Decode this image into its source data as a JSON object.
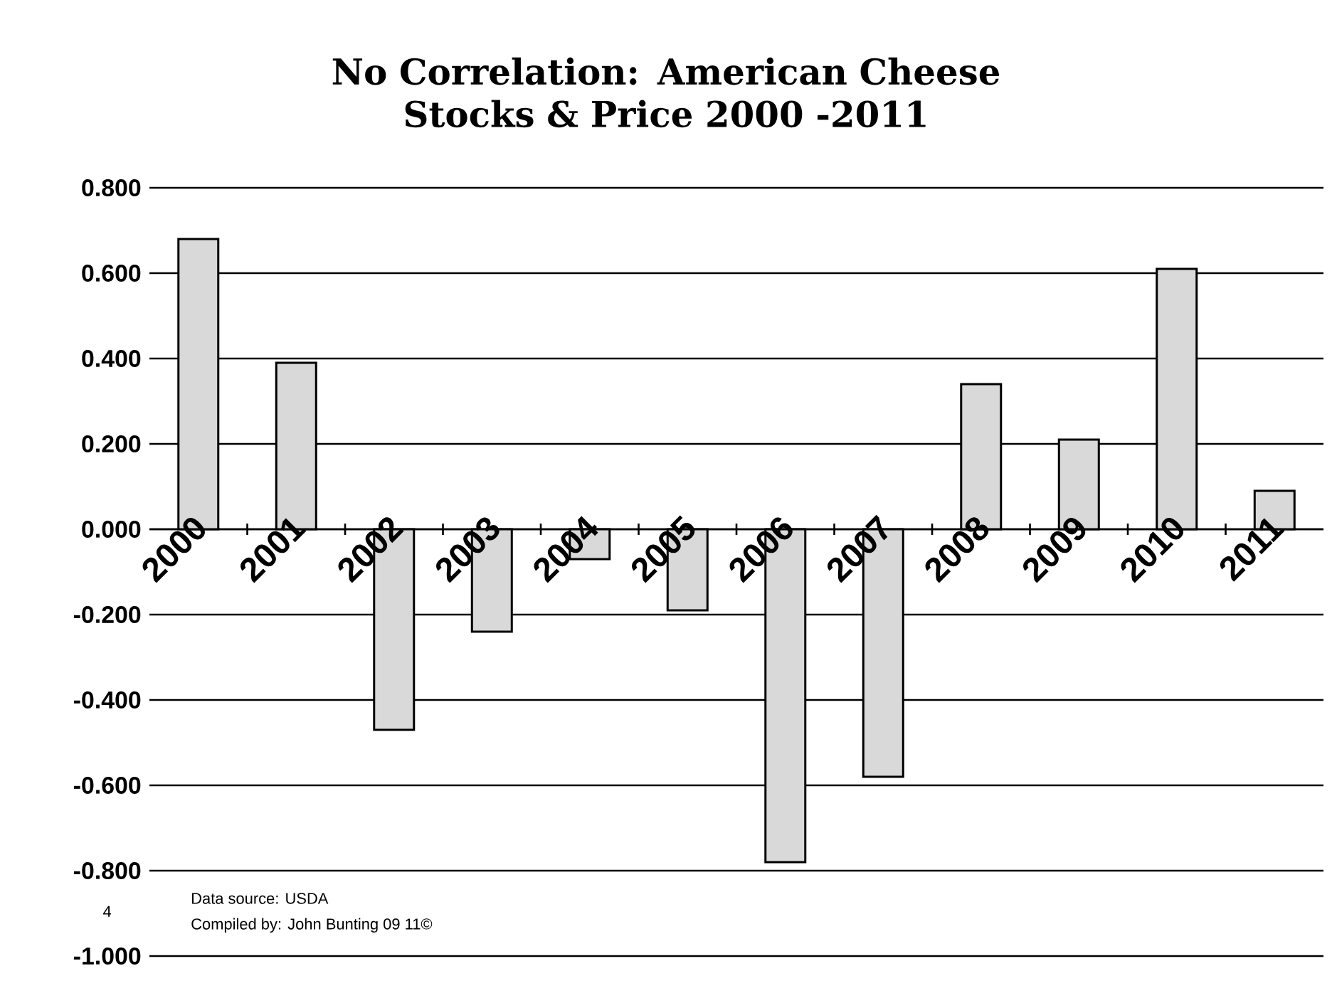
{
  "chart_data": {
    "type": "bar",
    "title": "No Correlation: American Cheese Stocks & Price 2000 -2011",
    "categories": [
      "2000",
      "2001",
      "2002",
      "2003",
      "2004",
      "2005",
      "2006",
      "2007",
      "2008",
      "2009",
      "2010",
      "2011"
    ],
    "values": [
      0.68,
      0.39,
      -0.47,
      -0.24,
      -0.07,
      -0.19,
      -0.78,
      -0.58,
      0.34,
      0.21,
      0.61,
      0.09
    ],
    "color": "#d9d9d9",
    "ylim": [
      -1.0,
      0.8
    ],
    "yticks": [
      {
        "value": -1.0,
        "label": "-1.000"
      },
      {
        "value": -0.8,
        "label": "-0.800"
      },
      {
        "value": -0.6,
        "label": "-0.600"
      },
      {
        "value": -0.4,
        "label": "-0.400"
      },
      {
        "value": -0.2,
        "label": "-0.200"
      },
      {
        "value": 0,
        "label": "0.000"
      },
      {
        "value": 0.2,
        "label": "0.200"
      },
      {
        "value": 0.4,
        "label": "0.400"
      },
      {
        "value": 0.6,
        "label": "0.600"
      },
      {
        "value": 0.8,
        "label": "0.800"
      }
    ],
    "grid": "y",
    "annotations": [
      "Data source: USDA",
      "Compiled by: John Bunting 09 11©",
      "4"
    ]
  }
}
